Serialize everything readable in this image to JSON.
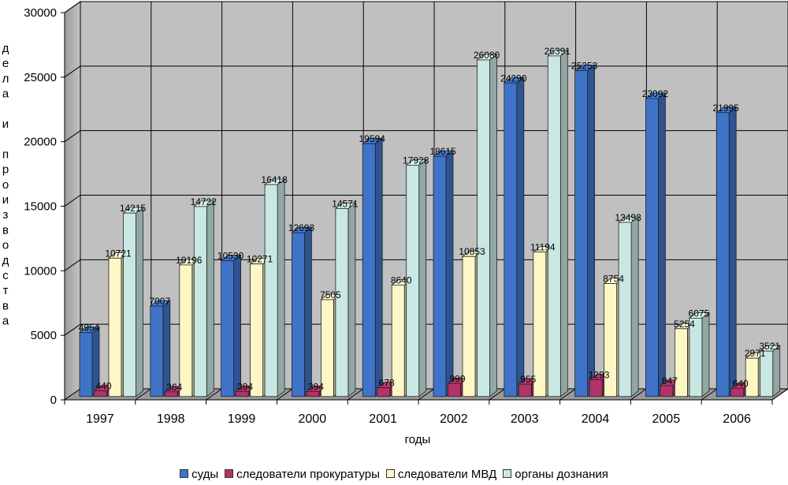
{
  "chart_data": {
    "type": "bar",
    "xlabel": "годы",
    "ylabel": "дела и производства",
    "ylim": [
      0,
      30000
    ],
    "yticks": [
      0,
      5000,
      10000,
      15000,
      20000,
      25000,
      30000
    ],
    "grid": true,
    "legend_position": "bottom",
    "categories": [
      "1997",
      "1998",
      "1999",
      "2000",
      "2001",
      "2002",
      "2003",
      "2004",
      "2005",
      "2006"
    ],
    "series": [
      {
        "name": "суды",
        "color": "#3f73c8",
        "values": [
          4954,
          7007,
          10530,
          12693,
          19594,
          18615,
          24290,
          25253,
          23092,
          21995
        ]
      },
      {
        "name": "следователи прокуратуры",
        "color": "#b2336a",
        "values": [
          440,
          364,
          394,
          394,
          678,
          999,
          955,
          1293,
          847,
          640
        ]
      },
      {
        "name": "следователи МВД",
        "color": "#fdf7c6",
        "values": [
          10721,
          10196,
          10271,
          7505,
          8640,
          10853,
          11194,
          8754,
          5254,
          2971
        ]
      },
      {
        "name": "органы дознания",
        "color": "#c9e8e4",
        "values": [
          14215,
          14722,
          16418,
          14571,
          17928,
          26080,
          26391,
          13493,
          6075,
          3521
        ]
      }
    ]
  }
}
